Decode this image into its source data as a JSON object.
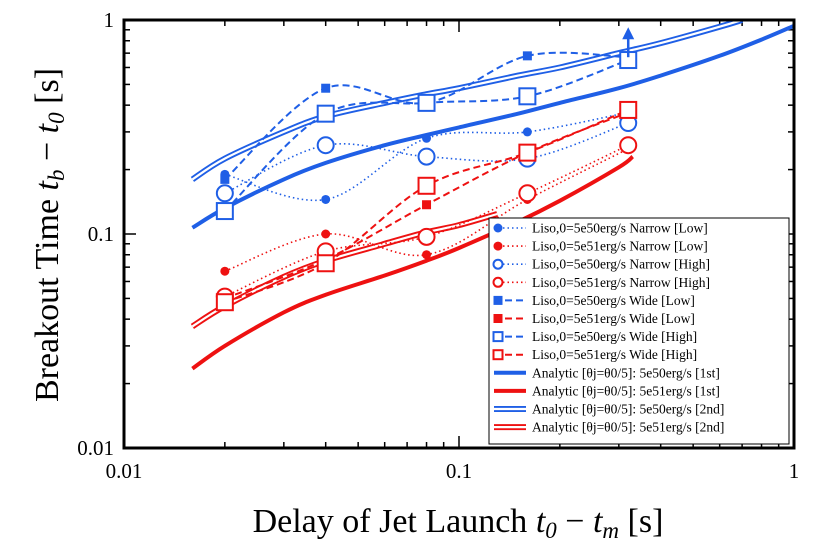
{
  "chart_data": {
    "type": "scatter",
    "title": "",
    "xlabel": {
      "prefix": "Delay of Jet Launch ",
      "math": "t0 − tm",
      "suffix": " [s]",
      "parts": [
        "t",
        "0",
        " − ",
        "t",
        "m"
      ]
    },
    "ylabel": {
      "prefix": "Breakout Time ",
      "math": "tb − t0",
      "suffix": " [s]",
      "parts": [
        "t",
        "b",
        " − ",
        "t",
        "0"
      ]
    },
    "xscale": "log",
    "yscale": "log",
    "xlim": [
      0.01,
      1
    ],
    "ylim": [
      0.01,
      1
    ],
    "xticks": [
      {
        "value": 0.01,
        "label": "0.01"
      },
      {
        "value": 0.1,
        "label": "0.1"
      },
      {
        "value": 1,
        "label": "1"
      }
    ],
    "yticks": [
      {
        "value": 0.01,
        "label": "0.01"
      },
      {
        "value": 0.1,
        "label": "0.1"
      },
      {
        "value": 1,
        "label": "1"
      }
    ],
    "legend_position": "bottom-right",
    "colors": {
      "blue": "#1f5fe6",
      "red": "#ee1111"
    },
    "series": [
      {
        "name": "Liso,0=5e50erg/s Narrow [Low]",
        "color": "#1f5fe6",
        "style": "dotted",
        "marker": "circle-filled",
        "x": [
          0.02,
          0.04,
          0.08,
          0.16,
          0.32
        ],
        "y": [
          0.19,
          0.145,
          0.28,
          0.3,
          0.37
        ]
      },
      {
        "name": "Liso,0=5e51erg/s Narrow [Low]",
        "color": "#ee1111",
        "style": "dotted",
        "marker": "circle-filled",
        "x": [
          0.02,
          0.04,
          0.08,
          0.16,
          0.32
        ],
        "y": [
          0.067,
          0.1,
          0.08,
          0.145,
          0.25
        ]
      },
      {
        "name": "Liso,0=5e50erg/s Narrow [High]",
        "color": "#1f5fe6",
        "style": "dotted",
        "marker": "circle-open",
        "x": [
          0.02,
          0.04,
          0.08,
          0.16,
          0.32
        ],
        "y": [
          0.155,
          0.26,
          0.23,
          0.225,
          0.33
        ]
      },
      {
        "name": "Liso,0=5e51erg/s Narrow [High]",
        "color": "#ee1111",
        "style": "dotted",
        "marker": "circle-open",
        "x": [
          0.02,
          0.04,
          0.08,
          0.16,
          0.32
        ],
        "y": [
          0.051,
          0.083,
          0.097,
          0.155,
          0.26
        ]
      },
      {
        "name": "Liso,0=5e50erg/s Wide [Low]",
        "color": "#1f5fe6",
        "style": "dashed",
        "marker": "square-filled",
        "x": [
          0.02,
          0.04,
          0.08,
          0.16,
          0.32
        ],
        "y": [
          0.18,
          0.48,
          0.41,
          0.68,
          0.67
        ]
      },
      {
        "name": "Liso,0=5e51erg/s Wide [Low]",
        "color": "#ee1111",
        "style": "dashed",
        "marker": "square-filled",
        "x": [
          0.02,
          0.04,
          0.08,
          0.16,
          0.32
        ],
        "y": [
          0.05,
          0.076,
          0.137,
          0.24,
          0.37
        ]
      },
      {
        "name": "Liso,0=5e50erg/s Wide [High]",
        "color": "#1f5fe6",
        "style": "dashed",
        "marker": "square-open",
        "x": [
          0.02,
          0.04,
          0.08,
          0.16,
          0.32
        ],
        "y": [
          0.128,
          0.365,
          0.41,
          0.44,
          0.65
        ]
      },
      {
        "name": "Liso,0=5e51erg/s Wide [High]",
        "color": "#ee1111",
        "style": "dashed",
        "marker": "square-open",
        "x": [
          0.02,
          0.04,
          0.08,
          0.16,
          0.32
        ],
        "y": [
          0.048,
          0.073,
          0.168,
          0.24,
          0.38
        ]
      },
      {
        "name": "Analytic [θj=θ0/5]: 5e50erg/s [1st]",
        "color": "#1f5fe6",
        "style": "thick",
        "marker": "none",
        "x": [
          0.016,
          0.02,
          0.03,
          0.04,
          0.06,
          0.08,
          0.1,
          0.15,
          0.2,
          0.3,
          0.4,
          0.6,
          0.8,
          1.0
        ],
        "y": [
          0.107,
          0.132,
          0.18,
          0.215,
          0.26,
          0.29,
          0.315,
          0.365,
          0.41,
          0.48,
          0.55,
          0.68,
          0.81,
          0.94
        ]
      },
      {
        "name": "Analytic [θj=θ0/5]: 5e51erg/s [1st]",
        "color": "#ee1111",
        "style": "thick",
        "marker": "none",
        "x": [
          0.016,
          0.02,
          0.03,
          0.04,
          0.06,
          0.08,
          0.1,
          0.15,
          0.2,
          0.3,
          0.33
        ],
        "y": [
          0.0235,
          0.03,
          0.043,
          0.052,
          0.064,
          0.075,
          0.086,
          0.114,
          0.143,
          0.205,
          0.23
        ]
      },
      {
        "name": "Analytic [θj=θ0/5]: 5e50erg/s [2nd]",
        "color": "#1f5fe6",
        "style": "double",
        "marker": "none",
        "x": [
          0.016,
          0.02,
          0.03,
          0.04,
          0.06,
          0.08,
          0.1,
          0.15,
          0.2,
          0.3,
          0.4,
          0.6,
          0.7
        ],
        "y": [
          0.18,
          0.225,
          0.3,
          0.355,
          0.41,
          0.45,
          0.48,
          0.55,
          0.6,
          0.7,
          0.78,
          0.93,
          1.0
        ]
      },
      {
        "name": "Analytic [θj=θ0/5]: 5e51erg/s [2nd]",
        "color": "#ee1111",
        "style": "double",
        "marker": "none",
        "x": [
          0.016,
          0.02,
          0.03,
          0.04,
          0.06,
          0.08,
          0.1,
          0.13
        ],
        "y": [
          0.037,
          0.046,
          0.063,
          0.075,
          0.09,
          0.102,
          0.11,
          0.124
        ]
      }
    ],
    "arrow": {
      "x": 0.32,
      "y": 0.67,
      "color": "#1f5fe6"
    }
  }
}
